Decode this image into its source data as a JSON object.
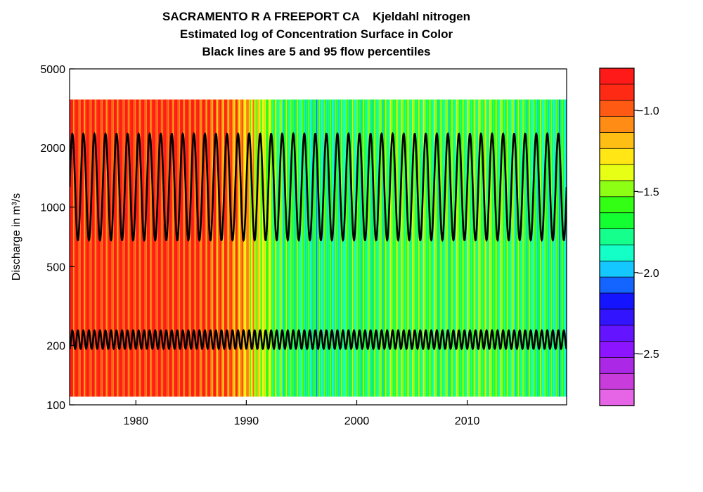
{
  "chart_data": {
    "type": "heatmap",
    "title_lines": [
      "SACRAMENTO R A FREEPORT CA    Kjeldahl nitrogen",
      "Estimated log of Concentration Surface in Color",
      "Black lines are 5 and 95 flow percentiles"
    ],
    "xlabel": "",
    "ylabel": "Discharge in m³/s",
    "y_scale": "log",
    "xlim": [
      1974,
      2019
    ],
    "ylim": [
      100,
      5000
    ],
    "x_ticks": [
      1980,
      1990,
      2000,
      2010
    ],
    "y_ticks": [
      100,
      200,
      500,
      1000,
      2000,
      5000
    ],
    "surface_y_range": [
      110,
      3500
    ],
    "colorbar": {
      "range": [
        -2.82,
        -0.74
      ],
      "ticks": [
        -1.0,
        -1.5,
        -2.0,
        -2.5
      ],
      "tick_labels": [
        "−1.0",
        "−1.5",
        "−2.0",
        "−2.5"
      ],
      "colors": [
        "#ff1a1a",
        "#ff2a14",
        "#ff5a14",
        "#ff8c14",
        "#ffbe14",
        "#ffe614",
        "#e6ff14",
        "#8cff14",
        "#32ff14",
        "#14ff32",
        "#14ff8c",
        "#14ffc8",
        "#14c8ff",
        "#1464ff",
        "#1414ff",
        "#3214ff",
        "#6414ff",
        "#8c14ff",
        "#aa28e6",
        "#c83cdc",
        "#e664e6"
      ]
    },
    "surface_levels_by_year": [
      {
        "year": 1974,
        "value": -0.85
      },
      {
        "year": 1978,
        "value": -0.88
      },
      {
        "year": 1983,
        "value": -0.86
      },
      {
        "year": 1987,
        "value": -0.95
      },
      {
        "year": 1989,
        "value": -1.05
      },
      {
        "year": 1991,
        "value": -1.35
      },
      {
        "year": 1993,
        "value": -1.65
      },
      {
        "year": 1996,
        "value": -1.75
      },
      {
        "year": 2000,
        "value": -1.7
      },
      {
        "year": 2004,
        "value": -1.6
      },
      {
        "year": 2008,
        "value": -1.65
      },
      {
        "year": 2012,
        "value": -1.6
      },
      {
        "year": 2016,
        "value": -1.7
      },
      {
        "year": 2019,
        "value": -1.75
      }
    ],
    "series": [
      {
        "name": "95 flow percentile",
        "low": 680,
        "high": 2350,
        "cycles_per_year": 1
      },
      {
        "name": "5 flow percentile",
        "low": 192,
        "high": 238,
        "cycles_per_year": 1
      }
    ]
  }
}
